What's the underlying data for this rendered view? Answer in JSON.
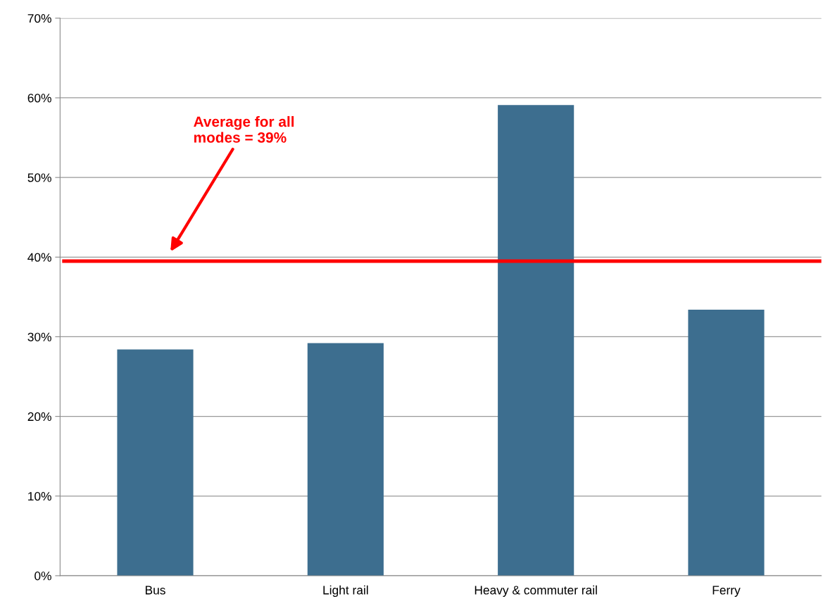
{
  "chart_data": {
    "type": "bar",
    "categories": [
      "Bus",
      "Light rail",
      "Heavy & commuter rail",
      "Ferry"
    ],
    "values": [
      28.4,
      29.2,
      59.1,
      33.4
    ],
    "color": "#3d6e8f",
    "ylim": [
      0,
      70
    ],
    "yticks": [
      {
        "value": 0,
        "label": "0%"
      },
      {
        "value": 10,
        "label": "10%"
      },
      {
        "value": 20,
        "label": "20%"
      },
      {
        "value": 30,
        "label": "30%"
      },
      {
        "value": 40,
        "label": "40%"
      },
      {
        "value": 50,
        "label": "50%"
      },
      {
        "value": 60,
        "label": "60%"
      },
      {
        "value": 70,
        "label": "70%"
      }
    ],
    "grid": "y",
    "ref_lines": [
      {
        "axis": "y",
        "value": 39.5,
        "label": "Average for all\nmodes = 39%",
        "color": "#ff0000"
      }
    ]
  }
}
